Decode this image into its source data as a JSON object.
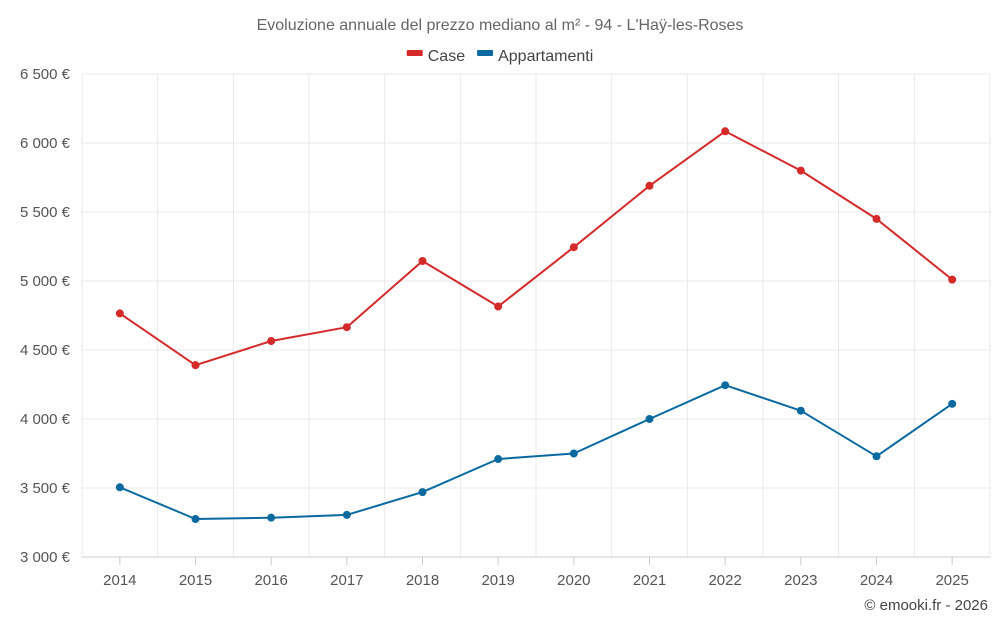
{
  "colors": {
    "case": "#d42a2a",
    "appartamenti": "#0a6aa0"
  },
  "chart_data": {
    "type": "line",
    "title": "Evoluzione annuale del prezzo mediano al m² - 94 - L'Haÿ-les-Roses",
    "categories": [
      "2014",
      "2015",
      "2016",
      "2017",
      "2018",
      "2019",
      "2020",
      "2021",
      "2022",
      "2023",
      "2024",
      "2025"
    ],
    "series": [
      {
        "name": "Case",
        "color": "#d42a2a",
        "values": [
          4765,
          4390,
          4565,
          4665,
          5145,
          4815,
          5245,
          5690,
          6085,
          5800,
          5450,
          5010
        ]
      },
      {
        "name": "Appartamenti",
        "color": "#0a6aa0",
        "values": [
          3505,
          3275,
          3285,
          3305,
          3470,
          3710,
          3750,
          4000,
          4245,
          4060,
          3730,
          4110
        ]
      }
    ],
    "ylim": [
      3000,
      6500
    ],
    "yticks": [
      3000,
      3500,
      4000,
      4500,
      5000,
      5500,
      6000,
      6500
    ],
    "ytick_labels": [
      "3 000 €",
      "3 500 €",
      "4 000 €",
      "4 500 €",
      "5 000 €",
      "5 500 €",
      "6 000 €",
      "6 500 €"
    ],
    "xlabel": "",
    "ylabel": "",
    "grid": true,
    "legend": "top-center"
  },
  "credit": "© emooki.fr - 2026"
}
